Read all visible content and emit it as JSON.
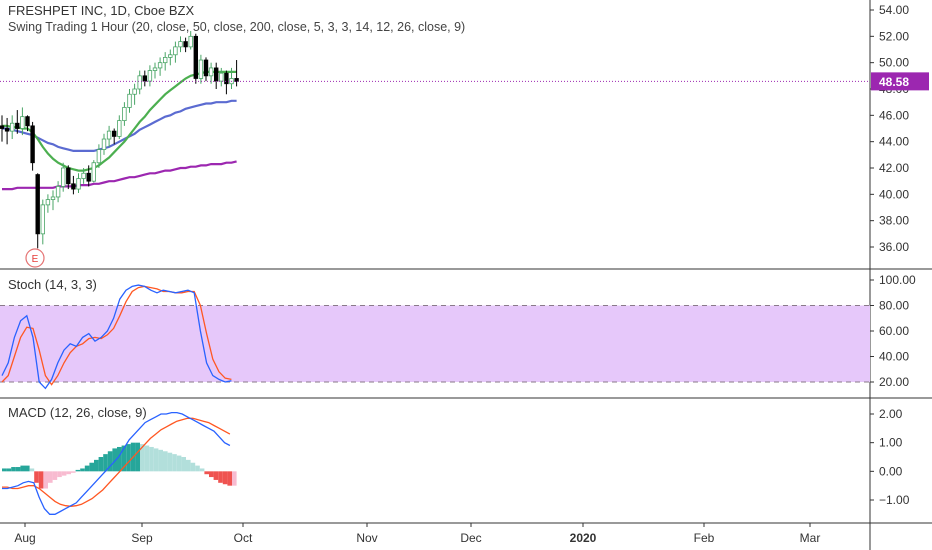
{
  "header": {
    "title": "FRESHPET INC, 1D, Cboe BZX",
    "study": "Swing Trading 1 Hour (20, close, 50, close, 200, close, 5, 3, 3, 14, 12, 26, close, 9)"
  },
  "stoch_label": "Stoch (14, 3, 3)",
  "macd_label": "MACD (12, 26, close, 9)",
  "last_price": "48.58",
  "earnings_marker": "E",
  "chart_data": [
    {
      "type": "candlestick",
      "panel": "price",
      "x_axis": [
        "Aug",
        "Sep",
        "Oct",
        "Nov",
        "Dec",
        "2020",
        "Feb",
        "Mar"
      ],
      "y_ticks": [
        "54.00",
        "52.00",
        "50.00",
        "48.00",
        "46.00",
        "44.00",
        "42.00",
        "40.00",
        "38.00",
        "36.00"
      ],
      "ylim": [
        35,
        55
      ],
      "last_price": 48.58,
      "candles": [
        {
          "o": 45.2,
          "h": 46.0,
          "l": 44.0,
          "c": 45.0
        },
        {
          "o": 45.0,
          "h": 45.8,
          "l": 43.8,
          "c": 44.8
        },
        {
          "o": 44.8,
          "h": 46.0,
          "l": 44.2,
          "c": 45.4
        },
        {
          "o": 45.4,
          "h": 46.4,
          "l": 44.6,
          "c": 45.0
        },
        {
          "o": 45.0,
          "h": 46.6,
          "l": 44.5,
          "c": 45.9
        },
        {
          "o": 45.9,
          "h": 46.0,
          "l": 44.8,
          "c": 45.2
        },
        {
          "o": 45.2,
          "h": 45.5,
          "l": 41.8,
          "c": 42.4
        },
        {
          "o": 41.5,
          "h": 41.6,
          "l": 35.9,
          "c": 37.0
        },
        {
          "o": 37.0,
          "h": 39.6,
          "l": 36.2,
          "c": 39.2
        },
        {
          "o": 39.2,
          "h": 40.0,
          "l": 38.6,
          "c": 39.6
        },
        {
          "o": 39.6,
          "h": 40.3,
          "l": 38.8,
          "c": 39.8
        },
        {
          "o": 39.8,
          "h": 41.0,
          "l": 39.4,
          "c": 40.6
        },
        {
          "o": 40.6,
          "h": 42.4,
          "l": 40.2,
          "c": 42.0
        },
        {
          "o": 42.0,
          "h": 42.2,
          "l": 40.4,
          "c": 40.8
        },
        {
          "o": 40.8,
          "h": 41.4,
          "l": 40.0,
          "c": 40.4
        },
        {
          "o": 40.4,
          "h": 41.6,
          "l": 40.1,
          "c": 41.2
        },
        {
          "o": 41.2,
          "h": 42.0,
          "l": 40.8,
          "c": 41.6
        },
        {
          "o": 41.6,
          "h": 42.2,
          "l": 40.6,
          "c": 41.0
        },
        {
          "o": 41.0,
          "h": 42.6,
          "l": 40.9,
          "c": 42.4
        },
        {
          "o": 42.4,
          "h": 43.8,
          "l": 42.0,
          "c": 43.4
        },
        {
          "o": 43.4,
          "h": 44.6,
          "l": 43.0,
          "c": 44.2
        },
        {
          "o": 44.2,
          "h": 45.2,
          "l": 43.6,
          "c": 44.8
        },
        {
          "o": 44.8,
          "h": 45.0,
          "l": 43.8,
          "c": 44.4
        },
        {
          "o": 44.4,
          "h": 46.0,
          "l": 44.2,
          "c": 45.6
        },
        {
          "o": 45.6,
          "h": 47.0,
          "l": 45.2,
          "c": 46.6
        },
        {
          "o": 46.6,
          "h": 48.0,
          "l": 46.2,
          "c": 47.6
        },
        {
          "o": 47.6,
          "h": 48.4,
          "l": 46.8,
          "c": 48.0
        },
        {
          "o": 48.0,
          "h": 49.4,
          "l": 47.6,
          "c": 49.0
        },
        {
          "o": 49.0,
          "h": 49.4,
          "l": 48.2,
          "c": 48.6
        },
        {
          "o": 48.6,
          "h": 49.8,
          "l": 48.2,
          "c": 49.4
        },
        {
          "o": 49.4,
          "h": 50.0,
          "l": 48.8,
          "c": 49.6
        },
        {
          "o": 49.6,
          "h": 50.4,
          "l": 49.0,
          "c": 50.0
        },
        {
          "o": 50.0,
          "h": 50.8,
          "l": 49.4,
          "c": 50.4
        },
        {
          "o": 50.4,
          "h": 51.0,
          "l": 49.8,
          "c": 50.6
        },
        {
          "o": 50.6,
          "h": 51.6,
          "l": 50.0,
          "c": 51.2
        },
        {
          "o": 51.2,
          "h": 52.0,
          "l": 50.8,
          "c": 51.6
        },
        {
          "o": 51.6,
          "h": 51.9,
          "l": 50.8,
          "c": 51.2
        },
        {
          "o": 51.2,
          "h": 52.4,
          "l": 51.0,
          "c": 52.0
        },
        {
          "o": 52.0,
          "h": 52.2,
          "l": 48.4,
          "c": 48.8
        },
        {
          "o": 48.8,
          "h": 50.6,
          "l": 48.4,
          "c": 50.2
        },
        {
          "o": 50.2,
          "h": 50.4,
          "l": 48.6,
          "c": 49.0
        },
        {
          "o": 49.0,
          "h": 50.0,
          "l": 48.4,
          "c": 49.6
        },
        {
          "o": 49.6,
          "h": 50.0,
          "l": 48.0,
          "c": 48.6
        },
        {
          "o": 48.6,
          "h": 49.6,
          "l": 48.2,
          "c": 49.2
        },
        {
          "o": 49.2,
          "h": 49.4,
          "l": 47.6,
          "c": 48.4
        },
        {
          "o": 48.4,
          "h": 49.6,
          "l": 48.0,
          "c": 48.8
        },
        {
          "o": 48.8,
          "h": 50.2,
          "l": 48.2,
          "c": 48.58
        }
      ],
      "ma_20": [
        45.2,
        45.2,
        45.1,
        45.1,
        45.0,
        45.0,
        44.7,
        44.2,
        43.6,
        43.1,
        42.7,
        42.4,
        42.2,
        42.0,
        41.9,
        41.8,
        41.8,
        41.9,
        42.0,
        42.2,
        42.5,
        42.8,
        43.2,
        43.6,
        44.0,
        44.5,
        45.0,
        45.5,
        45.9,
        46.4,
        46.8,
        47.2,
        47.6,
        47.9,
        48.2,
        48.5,
        48.8,
        49.0,
        49.1,
        49.2,
        49.3,
        49.3,
        49.3,
        49.3,
        49.3,
        49.3,
        49.3
      ],
      "ma_50": [
        45.0,
        45.0,
        44.9,
        44.8,
        44.7,
        44.6,
        44.5,
        44.3,
        44.1,
        43.9,
        43.8,
        43.6,
        43.5,
        43.4,
        43.3,
        43.3,
        43.3,
        43.3,
        43.3,
        43.4,
        43.5,
        43.6,
        43.8,
        44.0,
        44.2,
        44.4,
        44.6,
        44.9,
        45.1,
        45.3,
        45.5,
        45.7,
        45.9,
        46.0,
        46.2,
        46.3,
        46.5,
        46.6,
        46.7,
        46.8,
        46.9,
        46.9,
        47.0,
        47.0,
        47.0,
        47.1,
        47.1
      ],
      "ma_200": [
        40.4,
        40.4,
        40.4,
        40.5,
        40.5,
        40.5,
        40.5,
        40.5,
        40.5,
        40.5,
        40.5,
        40.6,
        40.6,
        40.6,
        40.6,
        40.7,
        40.7,
        40.7,
        40.8,
        40.8,
        40.9,
        41.0,
        41.0,
        41.1,
        41.2,
        41.3,
        41.3,
        41.4,
        41.5,
        41.6,
        41.6,
        41.7,
        41.8,
        41.8,
        41.9,
        42.0,
        42.0,
        42.1,
        42.1,
        42.2,
        42.2,
        42.3,
        42.3,
        42.3,
        42.4,
        42.4,
        42.5
      ],
      "colors": {
        "up": "#4aa566",
        "down": "#000000",
        "ma_20": "#4caf50",
        "ma_50": "#5b6bd1",
        "ma_200": "#9c27b0"
      }
    },
    {
      "type": "line",
      "panel": "stochastic",
      "title": "Stoch (14, 3, 3)",
      "y_ticks": [
        "100.00",
        "80.00",
        "60.00",
        "40.00",
        "20.00"
      ],
      "ylim": [
        10,
        105
      ],
      "bands": [
        20,
        80
      ],
      "k": [
        25,
        35,
        55,
        68,
        72,
        55,
        20,
        15,
        22,
        35,
        45,
        50,
        48,
        55,
        58,
        52,
        55,
        60,
        70,
        85,
        92,
        95,
        96,
        95,
        92,
        90,
        92,
        91,
        90,
        91,
        92,
        90,
        60,
        35,
        25,
        22,
        20,
        21
      ],
      "d": [
        20,
        25,
        40,
        55,
        63,
        62,
        45,
        25,
        18,
        25,
        35,
        43,
        48,
        50,
        54,
        55,
        54,
        57,
        62,
        72,
        83,
        91,
        94,
        95,
        94,
        93,
        91,
        91,
        90,
        90,
        91,
        91,
        80,
        58,
        38,
        28,
        23,
        22
      ],
      "colors": {
        "k": "#2962ff",
        "d": "#ff5722",
        "band_fill": "#e6c8fa"
      }
    },
    {
      "type": "histogram+line",
      "panel": "macd",
      "title": "MACD (12, 26, close, 9)",
      "y_ticks": [
        "2.00",
        "1.00",
        "0.00",
        "−1.00"
      ],
      "ylim": [
        -2.0,
        2.6
      ],
      "histogram": [
        0.1,
        0.1,
        0.15,
        0.15,
        0.2,
        0.2,
        0.1,
        -0.4,
        -0.6,
        -0.6,
        -0.4,
        -0.3,
        -0.2,
        -0.15,
        -0.1,
        -0.05,
        0.05,
        0.1,
        0.2,
        0.3,
        0.4,
        0.5,
        0.6,
        0.7,
        0.8,
        0.85,
        0.9,
        0.95,
        1.0,
        1.0,
        0.95,
        0.9,
        0.85,
        0.8,
        0.75,
        0.7,
        0.65,
        0.6,
        0.55,
        0.5,
        0.4,
        0.3,
        0.2,
        0.1,
        -0.1,
        -0.2,
        -0.3,
        -0.4,
        -0.45,
        -0.5,
        -0.5
      ],
      "macd": [
        -0.6,
        -0.6,
        -0.55,
        -0.5,
        -0.4,
        -0.35,
        -0.4,
        -0.9,
        -1.3,
        -1.5,
        -1.5,
        -1.4,
        -1.3,
        -1.2,
        -1.1,
        -0.9,
        -0.7,
        -0.5,
        -0.3,
        -0.1,
        0.1,
        0.3,
        0.5,
        0.8,
        1.1,
        1.3,
        1.5,
        1.7,
        1.8,
        1.9,
        2.0,
        2.0,
        2.05,
        2.05,
        2.0,
        1.9,
        1.8,
        1.7,
        1.6,
        1.5,
        1.4,
        1.2,
        1.0,
        0.9
      ],
      "signal": [
        -0.55,
        -0.55,
        -0.6,
        -0.6,
        -0.55,
        -0.5,
        -0.5,
        -0.6,
        -0.75,
        -0.9,
        -1.05,
        -1.15,
        -1.2,
        -1.22,
        -1.2,
        -1.15,
        -1.05,
        -0.95,
        -0.8,
        -0.65,
        -0.45,
        -0.25,
        -0.05,
        0.15,
        0.35,
        0.55,
        0.75,
        0.95,
        1.15,
        1.3,
        1.45,
        1.55,
        1.65,
        1.75,
        1.8,
        1.85,
        1.85,
        1.8,
        1.75,
        1.7,
        1.6,
        1.5,
        1.4,
        1.3
      ],
      "colors": {
        "macd": "#2962ff",
        "signal": "#ff5722",
        "hist_pos_strong": "#26a69a",
        "hist_pos_weak": "#b2dfdb",
        "hist_neg_strong": "#ef5350",
        "hist_neg_weak": "#f8bbd0"
      }
    }
  ]
}
